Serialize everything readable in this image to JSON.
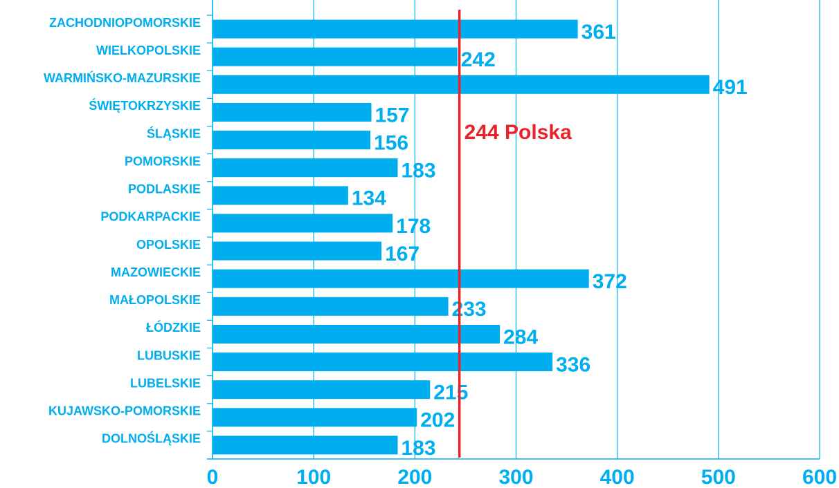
{
  "chart_data": {
    "type": "barh",
    "categories": [
      "ZACHODNIOPOMORSKIE",
      "WIELKOPOLSKIE",
      "WARMIŃSKO-MAZURSKIE",
      "ŚWIĘTOKRZYSKIE",
      "ŚLĄSKIE",
      "POMORSKIE",
      "PODLASKIE",
      "PODKARPACKIE",
      "OPOLSKIE",
      "MAZOWIECKIE",
      "MAŁOPOLSKIE",
      "ŁÓDZKIE",
      "LUBUSKIE",
      "LUBELSKIE",
      "KUJAWSKO-POMORSKIE",
      "DOLNOŚLĄSKIE"
    ],
    "values": [
      361,
      242,
      491,
      157,
      156,
      183,
      134,
      178,
      167,
      372,
      233,
      284,
      336,
      215,
      202,
      183
    ],
    "color": "#00aeef",
    "xlim": [
      0,
      600
    ],
    "xticks": [
      0,
      100,
      200,
      300,
      400,
      500,
      600
    ],
    "grid": true,
    "reference": {
      "value": 244,
      "label": "244 Polska",
      "color": "#e8232a"
    }
  }
}
